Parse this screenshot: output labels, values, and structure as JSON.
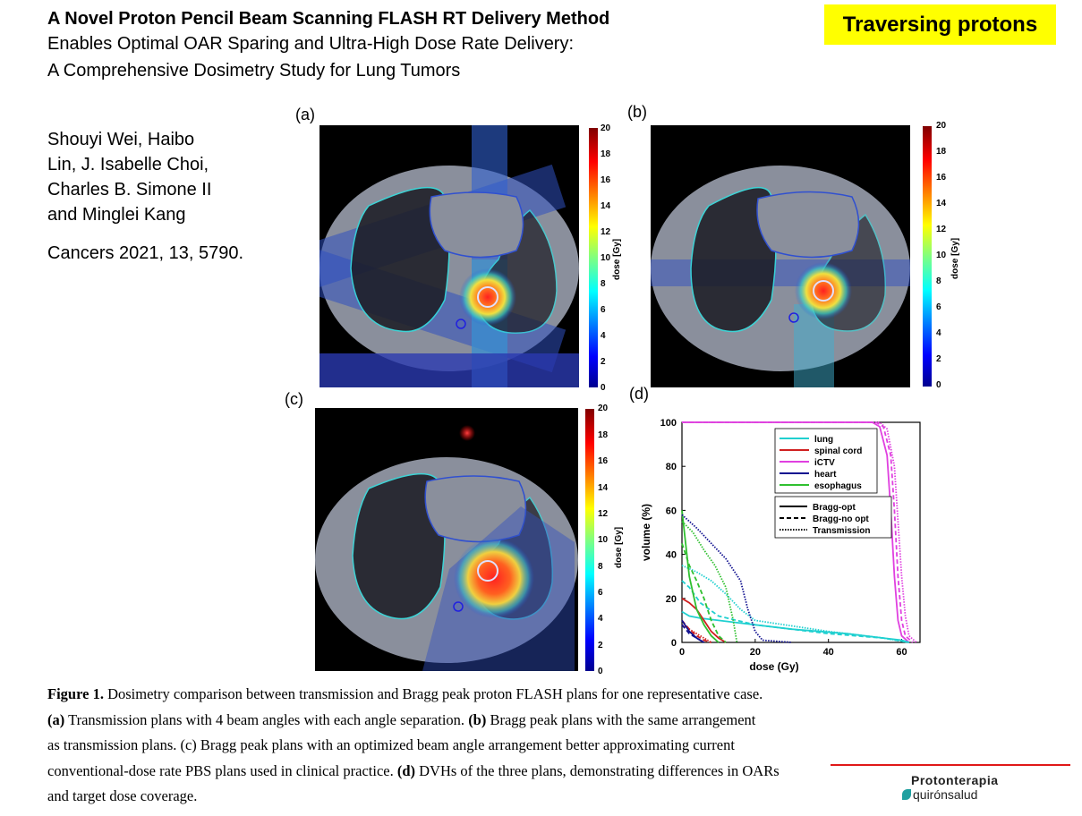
{
  "header": {
    "title_line1": "A Novel Proton Pencil Beam Scanning FLASH RT Delivery Method",
    "title_line2": "Enables Optimal OAR Sparing and Ultra-High Dose Rate Delivery:",
    "title_line3": "A Comprehensive Dosimetry Study for Lung Tumors",
    "badge": "Traversing protons"
  },
  "authors": {
    "line1": "Shouyi Wei, Haibo",
    "line2": "Lin, J. Isabelle Choi,",
    "line3": "Charles B. Simone II",
    "line4": "and Minglei Kang",
    "citation": "Cancers 2021, 13, 5790."
  },
  "figure": {
    "panel_labels": [
      "(a)",
      "(b)",
      "(c)",
      "(d)"
    ],
    "colorbar": {
      "title": "dose [Gy]",
      "ticks": [
        "20",
        "18",
        "16",
        "14",
        "12",
        "10",
        "8",
        "6",
        "4",
        "2",
        "0"
      ]
    }
  },
  "chart_data": {
    "type": "line",
    "xlabel": "dose (Gy)",
    "ylabel": "volume (%)",
    "xlim": [
      0,
      65
    ],
    "ylim": [
      0,
      100
    ],
    "xticks": [
      0,
      20,
      40,
      60
    ],
    "yticks": [
      0,
      20,
      40,
      60,
      80,
      100
    ],
    "legend_structures": [
      {
        "name": "lung",
        "color": "#20d0d0"
      },
      {
        "name": "spinal cord",
        "color": "#d02020"
      },
      {
        "name": "iCTV",
        "color": "#e040e0"
      },
      {
        "name": "heart",
        "color": "#101090"
      },
      {
        "name": "esophagus",
        "color": "#30c030"
      }
    ],
    "legend_plans": [
      {
        "name": "Bragg-opt",
        "style": "solid"
      },
      {
        "name": "Bragg-no opt",
        "style": "dashed"
      },
      {
        "name": "Transmission",
        "style": "dotted"
      }
    ],
    "series": [
      {
        "structure": "iCTV",
        "plan": "Bragg-opt",
        "color": "#e040e0",
        "style": "solid",
        "points": [
          [
            0,
            100
          ],
          [
            52,
            100
          ],
          [
            54,
            98
          ],
          [
            56,
            85
          ],
          [
            57,
            60
          ],
          [
            58,
            30
          ],
          [
            59,
            10
          ],
          [
            60,
            3
          ],
          [
            62,
            0
          ]
        ]
      },
      {
        "structure": "iCTV",
        "plan": "Bragg-no opt",
        "color": "#e040e0",
        "style": "dashed",
        "points": [
          [
            0,
            100
          ],
          [
            53,
            100
          ],
          [
            55,
            98
          ],
          [
            57,
            85
          ],
          [
            58,
            60
          ],
          [
            59,
            30
          ],
          [
            60,
            10
          ],
          [
            61,
            3
          ],
          [
            63,
            0
          ]
        ]
      },
      {
        "structure": "iCTV",
        "plan": "Transmission",
        "color": "#e040e0",
        "style": "dotted",
        "points": [
          [
            0,
            100
          ],
          [
            54,
            100
          ],
          [
            56,
            97
          ],
          [
            58,
            80
          ],
          [
            59,
            55
          ],
          [
            60,
            30
          ],
          [
            61,
            12
          ],
          [
            62,
            3
          ],
          [
            64,
            0
          ]
        ]
      },
      {
        "structure": "lung",
        "plan": "Bragg-opt",
        "color": "#20d0d0",
        "style": "solid",
        "points": [
          [
            0,
            14
          ],
          [
            2,
            12
          ],
          [
            5,
            11
          ],
          [
            15,
            9
          ],
          [
            30,
            6
          ],
          [
            45,
            4
          ],
          [
            55,
            2
          ],
          [
            60,
            1
          ],
          [
            62,
            0
          ]
        ]
      },
      {
        "structure": "lung",
        "plan": "Bragg-no opt",
        "color": "#20d0d0",
        "style": "dashed",
        "points": [
          [
            0,
            28
          ],
          [
            2,
            25
          ],
          [
            5,
            18
          ],
          [
            10,
            12
          ],
          [
            20,
            8
          ],
          [
            40,
            4
          ],
          [
            55,
            2
          ],
          [
            62,
            0
          ]
        ]
      },
      {
        "structure": "lung",
        "plan": "Transmission",
        "color": "#20d0d0",
        "style": "dotted",
        "points": [
          [
            0,
            35
          ],
          [
            4,
            32
          ],
          [
            8,
            28
          ],
          [
            12,
            22
          ],
          [
            16,
            15
          ],
          [
            20,
            10
          ],
          [
            40,
            5
          ],
          [
            55,
            2
          ],
          [
            62,
            0
          ]
        ]
      },
      {
        "structure": "spinal cord",
        "plan": "Bragg-opt",
        "color": "#d02020",
        "style": "solid",
        "points": [
          [
            0,
            20
          ],
          [
            2,
            18
          ],
          [
            4,
            15
          ],
          [
            6,
            10
          ],
          [
            8,
            5
          ],
          [
            10,
            2
          ],
          [
            12,
            0
          ]
        ]
      },
      {
        "structure": "spinal cord",
        "plan": "Bragg-no opt",
        "color": "#d02020",
        "style": "dashed",
        "points": [
          [
            0,
            10
          ],
          [
            2,
            6
          ],
          [
            4,
            3
          ],
          [
            6,
            1
          ],
          [
            8,
            0
          ]
        ]
      },
      {
        "structure": "spinal cord",
        "plan": "Transmission",
        "color": "#d02020",
        "style": "dotted",
        "points": [
          [
            0,
            8
          ],
          [
            2,
            6
          ],
          [
            4,
            4
          ],
          [
            6,
            2
          ],
          [
            8,
            0
          ]
        ]
      },
      {
        "structure": "esophagus",
        "plan": "Bragg-opt",
        "color": "#30c030",
        "style": "solid",
        "points": [
          [
            0,
            60
          ],
          [
            1,
            45
          ],
          [
            2,
            30
          ],
          [
            4,
            15
          ],
          [
            6,
            8
          ],
          [
            8,
            3
          ],
          [
            10,
            0
          ]
        ]
      },
      {
        "structure": "esophagus",
        "plan": "Bragg-no opt",
        "color": "#30c030",
        "style": "dashed",
        "points": [
          [
            0,
            45
          ],
          [
            2,
            35
          ],
          [
            4,
            28
          ],
          [
            6,
            20
          ],
          [
            8,
            10
          ],
          [
            10,
            3
          ],
          [
            12,
            0
          ]
        ]
      },
      {
        "structure": "esophagus",
        "plan": "Transmission",
        "color": "#30c030",
        "style": "dotted",
        "points": [
          [
            0,
            55
          ],
          [
            3,
            50
          ],
          [
            6,
            42
          ],
          [
            9,
            35
          ],
          [
            12,
            25
          ],
          [
            14,
            10
          ],
          [
            15,
            0
          ]
        ]
      },
      {
        "structure": "heart",
        "plan": "Bragg-opt",
        "color": "#101090",
        "style": "solid",
        "points": [
          [
            0,
            10
          ],
          [
            2,
            5
          ],
          [
            4,
            2
          ],
          [
            6,
            0
          ]
        ]
      },
      {
        "structure": "heart",
        "plan": "Bragg-no opt",
        "color": "#101090",
        "style": "dashed",
        "points": [
          [
            0,
            8
          ],
          [
            2,
            4
          ],
          [
            4,
            2
          ],
          [
            6,
            0
          ]
        ]
      },
      {
        "structure": "heart",
        "plan": "Transmission",
        "color": "#101090",
        "style": "dotted",
        "points": [
          [
            0,
            58
          ],
          [
            4,
            52
          ],
          [
            8,
            45
          ],
          [
            12,
            38
          ],
          [
            16,
            28
          ],
          [
            18,
            15
          ],
          [
            20,
            5
          ],
          [
            22,
            1
          ],
          [
            30,
            0
          ]
        ]
      }
    ]
  },
  "caption": {
    "line1_bold": "Figure 1.",
    "line1": "Dosimetry comparison between transmission and Bragg peak proton FLASH plans for one representative case.",
    "line2_b1": "(a)",
    "line2_t1": "Transmission plans with 4 beam angles with each angle separation.",
    "line2_b2": "(b)",
    "line2_t2": "Bragg peak plans with the same arrangement",
    "line3": "as transmission plans.  (c) Bragg peak plans with an optimized beam angle arrangement better approximating current",
    "line4_t1": "conventional-dose rate PBS plans used in clinical practice.",
    "line4_b": "(d)",
    "line4_t2": "DVHs of the three plans, demonstrating differences in OARs",
    "line5": "and target dose coverage."
  },
  "logo": {
    "line1": "Protonterapia",
    "line2": "quirónsalud"
  }
}
